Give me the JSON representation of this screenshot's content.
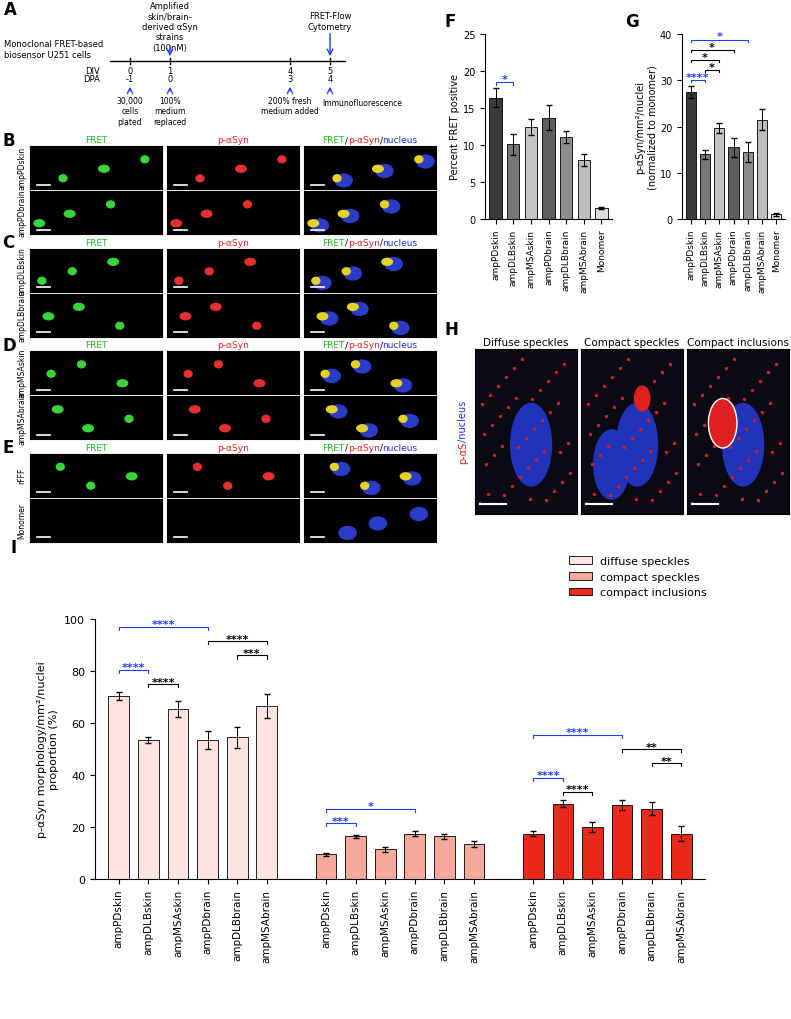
{
  "panel_A": {
    "letter": "A",
    "cells": "Monoclonal FRET-based\nbiosensor U251 cells",
    "treatment": "Amplified\nskin/brain-\nderived αSyn\nstrains\n(100nM)",
    "readout_top": "FRET-Flow\nCytometry",
    "readout_bottom": "Immunofluorescence",
    "div_label": "DIV",
    "dpa_label": "DPA",
    "div": [
      0,
      1,
      4,
      5
    ],
    "dpa": [
      -1,
      0,
      3,
      4
    ],
    "events": [
      "30,000\ncells\nplated",
      "100%\nmedium\nreplaced",
      "200% fresh\nmedium added"
    ]
  },
  "image_columns": [
    [
      {
        "text": "FRET",
        "color": "#22b822"
      }
    ],
    [
      {
        "text": "p-αSyn",
        "color": "#e02020"
      }
    ],
    [
      {
        "text": "FRET",
        "color": "#22b822"
      },
      {
        "text": "/",
        "color": "#000000"
      },
      {
        "text": "p-αSyn",
        "color": "#e02020"
      },
      {
        "text": "/",
        "color": "#000000"
      },
      {
        "text": "nucleus",
        "color": "#2030d0"
      }
    ]
  ],
  "image_panels": [
    {
      "letter": "B",
      "rows": [
        "ampPDskin",
        "ampPDbrain"
      ]
    },
    {
      "letter": "C",
      "rows": [
        "ampDLBskin",
        "ampDLBbrain"
      ]
    },
    {
      "letter": "D",
      "rows": [
        "ampMSAskin",
        "ampMSAbrain"
      ]
    },
    {
      "letter": "E",
      "rows": [
        "rFFF",
        "Monomer"
      ]
    }
  ],
  "panel_H": {
    "letter": "H",
    "titles": [
      "Diffuse speckles",
      "Compact speckles",
      "Compact inclusions"
    ],
    "ylabel": [
      {
        "text": "p-αS",
        "color": "#e02020"
      },
      {
        "text": "/nucleus",
        "color": "#2030d0"
      }
    ]
  },
  "chart_data": [
    {
      "letter": "F",
      "type": "bar",
      "ylabel": "Percent FRET positive",
      "categories": [
        "ampPDskin",
        "ampDLBskin",
        "ampMSAskin",
        "ampPDbrain",
        "ampDLBbrain",
        "ampMSAbrain",
        "Monomer"
      ],
      "values": [
        16.4,
        10.1,
        12.4,
        13.7,
        11.1,
        8.0,
        1.5
      ],
      "errors": [
        1.3,
        1.4,
        1.1,
        1.7,
        0.8,
        0.8,
        0.15
      ],
      "colors": [
        "#3a3a3a",
        "#777777",
        "#c4c4c4",
        "#5e5e5e",
        "#8e8e8e",
        "#bdbdbd",
        "#dcdcdc"
      ],
      "ylim": [
        0,
        25
      ],
      "yticks": [
        0,
        5,
        10,
        15,
        20,
        25
      ],
      "significance": [
        {
          "between": [
            0,
            1
          ],
          "label": "*",
          "color": "#1f3cff"
        }
      ]
    },
    {
      "letter": "G",
      "type": "bar",
      "ylabel": "p-αSyn/mm²/nuclei\n(normalized to monomer)",
      "categories": [
        "ampPDskin",
        "ampDLBskin",
        "ampMSAskin",
        "ampPDbrain",
        "ampDLBbrain",
        "ampMSAbrain",
        "Monomer"
      ],
      "values": [
        27.5,
        14.0,
        19.7,
        15.5,
        14.5,
        21.5,
        1.0
      ],
      "errors": [
        1.3,
        1.0,
        1.0,
        2.0,
        2.2,
        2.2,
        0.3
      ],
      "colors": [
        "#3a3a3a",
        "#777777",
        "#c4c4c4",
        "#5e5e5e",
        "#8e8e8e",
        "#bdbdbd",
        "#dcdcdc"
      ],
      "ylim": [
        0,
        40
      ],
      "yticks": [
        0,
        10,
        20,
        30,
        40
      ],
      "significance": [
        {
          "between": [
            0,
            1
          ],
          "label": "****",
          "color": "#1f3cff"
        },
        {
          "between": [
            1,
            2
          ],
          "label": "*",
          "color": "#000000"
        },
        {
          "between": [
            0,
            2
          ],
          "label": "*",
          "color": "#000000"
        },
        {
          "between": [
            0,
            3
          ],
          "label": "*",
          "color": "#000000"
        },
        {
          "between": [
            0,
            4
          ],
          "label": "*",
          "color": "#1f3cff"
        }
      ]
    },
    {
      "letter": "I",
      "type": "grouped_bar",
      "ylabel": "p-αSyn morphology/mm²/nuclei\nproportion (%)",
      "categories": [
        "ampPDskin",
        "ampDLBskin",
        "ampMSAskin",
        "ampPDbrain",
        "ampDLBbrain",
        "ampMSAbrain"
      ],
      "series": [
        {
          "name": "diffuse speckles",
          "color": "#fce4e1",
          "values": [
            70.5,
            53.5,
            65.5,
            53.5,
            54.5,
            66.5
          ],
          "errors": [
            1.5,
            1.2,
            3.0,
            3.5,
            4.0,
            4.5
          ],
          "significance": [
            {
              "between": [
                0,
                3
              ],
              "label": "****",
              "color": "#1f3cff"
            },
            {
              "between": [
                1,
                2
              ],
              "label": "****",
              "color": "#000000"
            },
            {
              "between": [
                3,
                5
              ],
              "label": "****",
              "color": "#000000"
            },
            {
              "between": [
                0,
                1
              ],
              "label": "****",
              "color": "#1f3cff"
            },
            {
              "between": [
                4,
                5
              ],
              "label": "***",
              "color": "#000000"
            }
          ]
        },
        {
          "name": "compact speckles",
          "color": "#f5a89c",
          "values": [
            9.5,
            16.5,
            11.5,
            17.5,
            16.5,
            13.5
          ],
          "errors": [
            0.5,
            0.6,
            1.0,
            1.0,
            1.0,
            1.0
          ],
          "significance": [
            {
              "between": [
                0,
                1
              ],
              "label": "***",
              "color": "#1f3cff"
            },
            {
              "between": [
                0,
                3
              ],
              "label": "*",
              "color": "#1f3cff"
            }
          ]
        },
        {
          "name": "compact inclusions",
          "color": "#e8291c",
          "values": [
            17.5,
            29.0,
            20.0,
            28.5,
            27.0,
            17.5
          ],
          "errors": [
            1.0,
            1.2,
            2.0,
            2.0,
            2.5,
            3.0
          ],
          "significance": [
            {
              "between": [
                0,
                3
              ],
              "label": "****",
              "color": "#1f3cff"
            },
            {
              "between": [
                1,
                2
              ],
              "label": "****",
              "color": "#000000"
            },
            {
              "between": [
                0,
                1
              ],
              "label": "****",
              "color": "#1f3cff"
            },
            {
              "between": [
                3,
                5
              ],
              "label": "**",
              "color": "#000000"
            },
            {
              "between": [
                4,
                5
              ],
              "label": "**",
              "color": "#000000"
            }
          ]
        }
      ],
      "ylim": [
        0,
        100
      ],
      "yticks": [
        0,
        20,
        40,
        60,
        80,
        100
      ],
      "legend": "upper right"
    }
  ]
}
